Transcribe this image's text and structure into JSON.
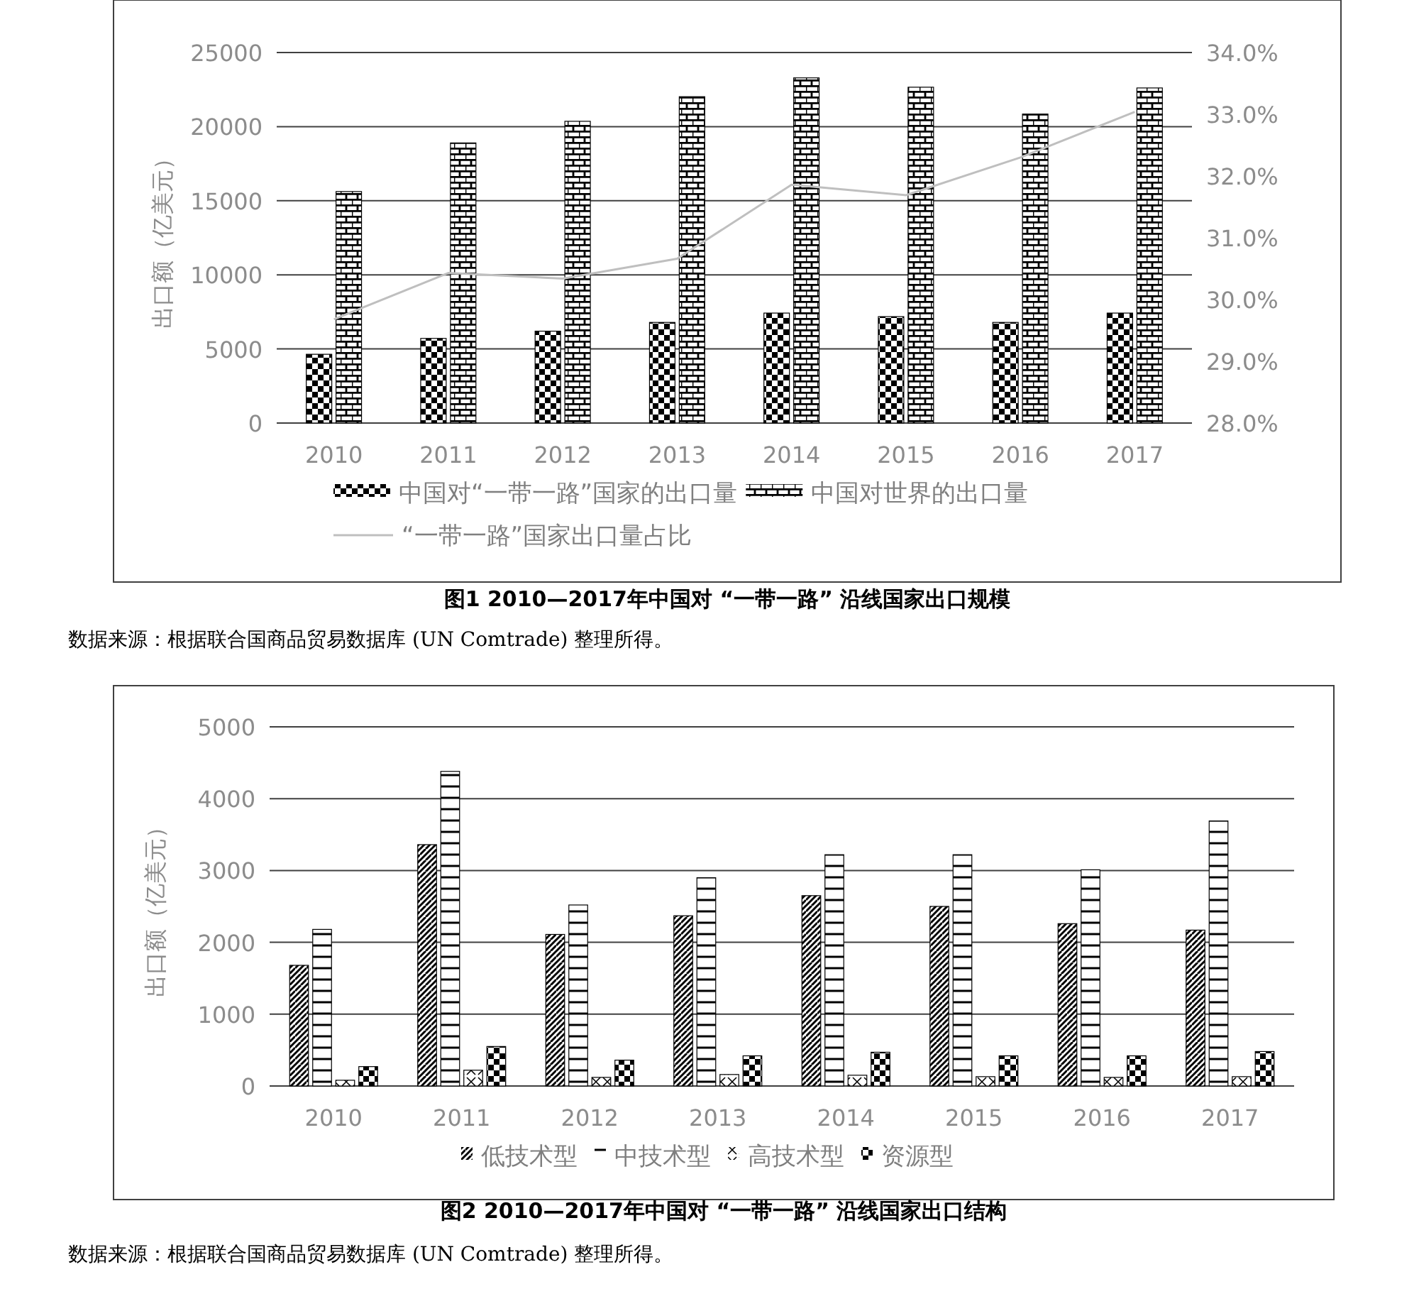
{
  "chart_data": [
    {
      "type": "bar",
      "title": "图1  2010—2017年中国对 “一带一路” 沿线国家出口规模",
      "ylabel": "出口额（亿美元）",
      "categories": [
        "2010",
        "2011",
        "2012",
        "2013",
        "2014",
        "2015",
        "2016",
        "2017"
      ],
      "series": [
        {
          "name": "中国对“一带一路”国家的出口量",
          "color": "#000000",
          "values": [
            4640,
            5710,
            6200,
            6790,
            7420,
            7180,
            6790,
            7420
          ]
        },
        {
          "name": "中国对世界的出口量",
          "color": "#000000",
          "values": [
            15620,
            18900,
            20360,
            22020,
            23290,
            22660,
            20850,
            22610
          ]
        },
        {
          "name": "“一带一路”国家出口量占比",
          "type": "line",
          "axis": "y2",
          "color": "#bfbfbf",
          "values": [
            29.68,
            30.43,
            30.34,
            30.66,
            31.86,
            31.69,
            32.3,
            33.04
          ]
        }
      ],
      "ylim": [
        0,
        25000
      ],
      "yticks": [
        0,
        5000,
        10000,
        15000,
        20000,
        25000
      ],
      "y2lim": [
        28,
        34
      ],
      "y2ticks": [
        {
          "value": 28,
          "label": "28.0%"
        },
        {
          "value": 29,
          "label": "29.0%"
        },
        {
          "value": 30,
          "label": "30.0%"
        },
        {
          "value": 31,
          "label": "31.0%"
        },
        {
          "value": 32,
          "label": "32.0%"
        },
        {
          "value": 33,
          "label": "33.0%"
        },
        {
          "value": 34,
          "label": "34.0%"
        }
      ],
      "grid": "y",
      "legend": "bottom",
      "annotations": [
        "数据来源：根据联合国商品贸易数据库 (UN Comtrade) 整理所得。"
      ]
    },
    {
      "type": "bar",
      "title": "图2  2010—2017年中国对 “一带一路” 沿线国家出口结构",
      "ylabel": "出口额（亿美元）",
      "categories": [
        "2010",
        "2011",
        "2012",
        "2013",
        "2014",
        "2015",
        "2016",
        "2017"
      ],
      "series": [
        {
          "name": "低技术型",
          "color": "#000000",
          "values": [
            1680,
            3360,
            2110,
            2370,
            2650,
            2500,
            2260,
            2170
          ]
        },
        {
          "name": "中技术型",
          "color": "#000000",
          "values": [
            2180,
            4380,
            2520,
            2900,
            3220,
            3220,
            3010,
            3690
          ]
        },
        {
          "name": "高技术型",
          "color": "#000000",
          "values": [
            80,
            220,
            120,
            160,
            150,
            130,
            120,
            130
          ]
        },
        {
          "name": "资源型",
          "color": "#000000",
          "values": [
            270,
            550,
            360,
            420,
            470,
            420,
            420,
            480
          ]
        }
      ],
      "ylim": [
        0,
        5000
      ],
      "yticks": [
        0,
        1000,
        2000,
        3000,
        4000,
        5000
      ],
      "grid": "y",
      "legend": "bottom",
      "annotations": [
        "数据来源：根据联合国商品贸易数据库 (UN Comtrade) 整理所得。"
      ]
    }
  ]
}
